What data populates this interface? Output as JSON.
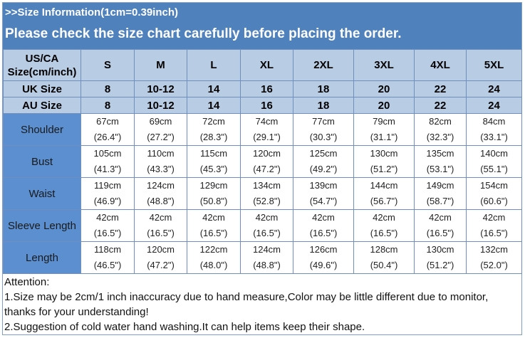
{
  "banner": {
    "title": ">>Size Information(1cm=0.39inch)",
    "subtitle": "Please check the size chart carefully before placing the order."
  },
  "table": {
    "corner": "US/CA Size(cm/inch)",
    "sizes": [
      "S",
      "M",
      "L",
      "XL",
      "2XL",
      "3XL",
      "4XL",
      "5XL"
    ],
    "uk": {
      "label": "UK Size",
      "values": [
        "8",
        "10-12",
        "14",
        "16",
        "18",
        "20",
        "22",
        "24"
      ]
    },
    "au": {
      "label": "AU Size",
      "values": [
        "8",
        "10-12",
        "14",
        "16",
        "18",
        "20",
        "22",
        "24"
      ]
    },
    "rows": [
      {
        "label": "Shoulder",
        "cm": [
          "67cm",
          "69cm",
          "72cm",
          "74cm",
          "77cm",
          "79cm",
          "82cm",
          "84cm"
        ],
        "inch": [
          "(26.4\")",
          "(27.2\")",
          "(28.3\")",
          "(29.1\")",
          "(30.3\")",
          "(31.1\")",
          "(32.3\")",
          "(33.1\")"
        ]
      },
      {
        "label": "Bust",
        "cm": [
          "105cm",
          "110cm",
          "115cm",
          "120cm",
          "125cm",
          "130cm",
          "135cm",
          "140cm"
        ],
        "inch": [
          "(41.3\")",
          "(43.3\")",
          "(45.3\")",
          "(47.2\")",
          "(49.2\")",
          "(51.2\")",
          "(53.1\")",
          "(55.1\")"
        ]
      },
      {
        "label": "Waist",
        "cm": [
          "119cm",
          "124cm",
          "129cm",
          "134cm",
          "139cm",
          "144cm",
          "149cm",
          "154cm"
        ],
        "inch": [
          "(46.9\")",
          "(48.8\")",
          "(50.8\")",
          "(52.8\")",
          "(54.7\")",
          "(56.7\")",
          "(58.7\")",
          "(60.6\")"
        ]
      },
      {
        "label": "Sleeve Length",
        "cm": [
          "42cm",
          "42cm",
          "42cm",
          "42cm",
          "42cm",
          "42cm",
          "42cm",
          "42cm"
        ],
        "inch": [
          "(16.5\")",
          "(16.5\")",
          "(16.5\")",
          "(16.5\")",
          "(16.5\")",
          "(16.5\")",
          "(16.5\")",
          "(16.5\")"
        ]
      },
      {
        "label": "Length",
        "cm": [
          "118cm",
          "120cm",
          "122cm",
          "124cm",
          "126cm",
          "128cm",
          "130cm",
          "132cm"
        ],
        "inch": [
          "(46.5\")",
          "(47.2\")",
          "(48.0\")",
          "(48.8\")",
          "(49.6\")",
          "(50.4\")",
          "(51.2\")",
          "(52.0\")"
        ]
      }
    ]
  },
  "notes": [
    "Attention:",
    "1.Size may be 2cm/1 inch inaccuracy due to hand measure,Color may be little different due to monitor, thanks for your understanding!",
    "2.Suggestion of cold water hand washing.It can help items keep their shape."
  ]
}
